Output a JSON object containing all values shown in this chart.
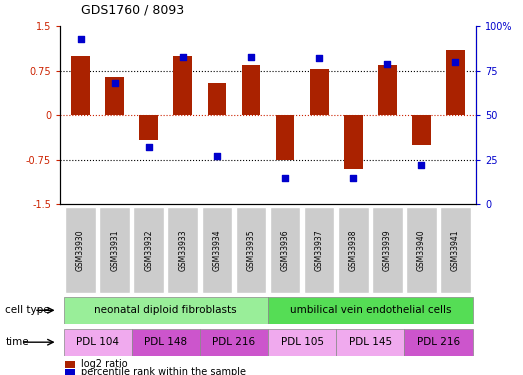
{
  "title": "GDS1760 / 8093",
  "samples": [
    "GSM33930",
    "GSM33931",
    "GSM33932",
    "GSM33933",
    "GSM33934",
    "GSM33935",
    "GSM33936",
    "GSM33937",
    "GSM33938",
    "GSM33939",
    "GSM33940",
    "GSM33941"
  ],
  "log2_ratios": [
    1.0,
    0.65,
    -0.42,
    1.0,
    0.55,
    0.85,
    -0.75,
    0.78,
    -0.9,
    0.85,
    -0.5,
    1.1
  ],
  "percentile_ranks": [
    93,
    68,
    32,
    83,
    27,
    83,
    15,
    82,
    15,
    79,
    22,
    80
  ],
  "ylim_left": [
    -1.5,
    1.5
  ],
  "ylim_right": [
    0,
    100
  ],
  "yticks_left": [
    -1.5,
    -0.75,
    0,
    0.75,
    1.5
  ],
  "yticks_right": [
    0,
    25,
    50,
    75,
    100
  ],
  "ytick_labels_left": [
    "-1.5",
    "-0.75",
    "0",
    "0.75",
    "1.5"
  ],
  "ytick_labels_right": [
    "0",
    "25",
    "50",
    "75",
    "100%"
  ],
  "bar_color": "#aa2200",
  "dot_color": "#0000cc",
  "bar_width": 0.55,
  "sample_box_color": "#cccccc",
  "cell_type_groups": [
    {
      "label": "neonatal diploid fibroblasts",
      "start": 0,
      "end": 5,
      "color": "#99ee99"
    },
    {
      "label": "umbilical vein endothelial cells",
      "start": 6,
      "end": 11,
      "color": "#55dd55"
    }
  ],
  "time_groups": [
    {
      "label": "PDL 104",
      "start": 0,
      "end": 1,
      "color": "#f0aaee"
    },
    {
      "label": "PDL 148",
      "start": 2,
      "end": 3,
      "color": "#cc55cc"
    },
    {
      "label": "PDL 216",
      "start": 4,
      "end": 5,
      "color": "#cc55cc"
    },
    {
      "label": "PDL 105",
      "start": 6,
      "end": 7,
      "color": "#f0aaee"
    },
    {
      "label": "PDL 145",
      "start": 8,
      "end": 9,
      "color": "#f0aaee"
    },
    {
      "label": "PDL 216",
      "start": 10,
      "end": 11,
      "color": "#cc55cc"
    }
  ],
  "legend_items": [
    {
      "label": "log2 ratio",
      "color": "#aa2200"
    },
    {
      "label": "percentile rank within the sample",
      "color": "#0000cc"
    }
  ],
  "left_axis_color": "#cc2200",
  "right_axis_color": "#0000cc",
  "cell_type_label": "cell type",
  "time_label": "time"
}
